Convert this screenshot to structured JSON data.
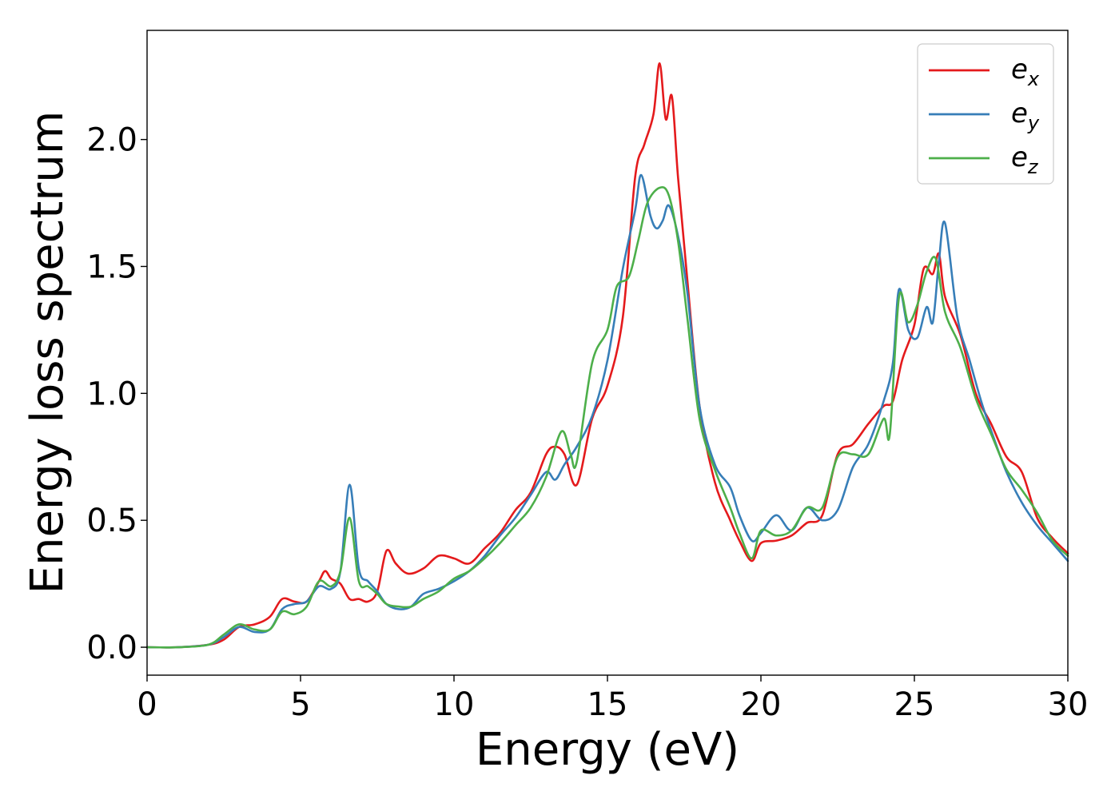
{
  "chart_data": {
    "type": "line",
    "title": "",
    "xlabel": "Energy (eV)",
    "ylabel": "Energy loss spectrum",
    "xlim": [
      0,
      30
    ],
    "ylim": [
      -0.11,
      2.43
    ],
    "xticks": [
      "0",
      "5",
      "10",
      "15",
      "20",
      "25",
      "30"
    ],
    "yticks": [
      "0.0",
      "0.5",
      "1.0",
      "1.5",
      "2.0"
    ],
    "grid": false,
    "legend_position": "top-right",
    "series": [
      {
        "name": "e_x",
        "label_base": "e",
        "label_sub": "x",
        "color": "#e41a1c",
        "x": [
          0,
          1,
          2,
          2.5,
          3,
          3.5,
          4,
          4.4,
          4.8,
          5.2,
          5.6,
          5.8,
          6,
          6.3,
          6.6,
          6.9,
          7.2,
          7.5,
          7.8,
          8.1,
          8.5,
          9,
          9.5,
          10,
          10.5,
          11,
          11.5,
          12,
          12.5,
          13,
          13.3,
          13.6,
          14,
          14.5,
          15,
          15.5,
          15.9,
          16.2,
          16.5,
          16.7,
          16.9,
          17.1,
          17.3,
          17.6,
          18,
          18.5,
          19,
          19.3,
          19.7,
          20,
          20.5,
          21,
          21.5,
          22,
          22.5,
          23,
          23.5,
          24,
          24.3,
          24.6,
          25,
          25.3,
          25.6,
          25.8,
          26,
          26.5,
          27,
          27.5,
          28,
          28.5,
          29,
          29.5,
          30
        ],
        "y": [
          0,
          0,
          0.01,
          0.03,
          0.08,
          0.09,
          0.12,
          0.19,
          0.18,
          0.18,
          0.26,
          0.3,
          0.27,
          0.25,
          0.19,
          0.19,
          0.18,
          0.22,
          0.38,
          0.33,
          0.29,
          0.31,
          0.36,
          0.35,
          0.33,
          0.39,
          0.45,
          0.54,
          0.61,
          0.76,
          0.79,
          0.76,
          0.64,
          0.9,
          1.03,
          1.3,
          1.85,
          1.98,
          2.1,
          2.3,
          2.08,
          2.17,
          1.85,
          1.45,
          0.95,
          0.65,
          0.5,
          0.42,
          0.34,
          0.41,
          0.42,
          0.44,
          0.49,
          0.52,
          0.76,
          0.8,
          0.88,
          0.95,
          0.97,
          1.13,
          1.27,
          1.49,
          1.47,
          1.55,
          1.38,
          1.23,
          1.0,
          0.88,
          0.75,
          0.69,
          0.51,
          0.43,
          0.37
        ]
      },
      {
        "name": "e_y",
        "label_base": "e",
        "label_sub": "y",
        "color": "#377eb8",
        "x": [
          0,
          1,
          2,
          2.5,
          3,
          3.5,
          4,
          4.4,
          4.8,
          5.2,
          5.6,
          6,
          6.3,
          6.6,
          6.9,
          7.2,
          7.5,
          7.8,
          8.2,
          8.6,
          9,
          9.5,
          10,
          10.5,
          11,
          11.5,
          12,
          12.5,
          13,
          13.3,
          13.6,
          14,
          14.5,
          15,
          15.5,
          15.9,
          16.1,
          16.4,
          16.6,
          16.8,
          17,
          17.3,
          17.6,
          18,
          18.5,
          19,
          19.3,
          19.7,
          20,
          20.5,
          21,
          21.5,
          22,
          22.5,
          23,
          23.5,
          24,
          24.3,
          24.5,
          24.8,
          25.1,
          25.4,
          25.6,
          25.8,
          26,
          26.4,
          26.8,
          27.2,
          27.6,
          28,
          28.5,
          29,
          29.5,
          30
        ],
        "y": [
          0,
          0,
          0.01,
          0.04,
          0.08,
          0.06,
          0.07,
          0.15,
          0.17,
          0.18,
          0.24,
          0.23,
          0.3,
          0.64,
          0.31,
          0.26,
          0.22,
          0.17,
          0.15,
          0.16,
          0.21,
          0.23,
          0.26,
          0.3,
          0.36,
          0.44,
          0.51,
          0.6,
          0.69,
          0.66,
          0.72,
          0.79,
          0.91,
          1.13,
          1.49,
          1.72,
          1.86,
          1.7,
          1.65,
          1.68,
          1.74,
          1.62,
          1.4,
          0.95,
          0.72,
          0.63,
          0.52,
          0.42,
          0.45,
          0.52,
          0.46,
          0.55,
          0.5,
          0.54,
          0.71,
          0.8,
          0.97,
          1.12,
          1.41,
          1.25,
          1.22,
          1.34,
          1.28,
          1.52,
          1.67,
          1.3,
          1.13,
          0.96,
          0.82,
          0.69,
          0.57,
          0.48,
          0.41,
          0.34
        ]
      },
      {
        "name": "e_z",
        "label_base": "e",
        "label_sub": "z",
        "color": "#4daf4a",
        "x": [
          0,
          1,
          2,
          2.5,
          3,
          3.5,
          4,
          4.4,
          4.8,
          5.2,
          5.6,
          6,
          6.3,
          6.6,
          6.9,
          7.2,
          7.5,
          7.8,
          8.2,
          8.6,
          9,
          9.5,
          10,
          10.5,
          11,
          11.5,
          12,
          12.5,
          13,
          13.5,
          13.8,
          14,
          14.5,
          15,
          15.3,
          15.7,
          16,
          16.3,
          16.7,
          17,
          17.3,
          17.6,
          18,
          18.5,
          19,
          19.3,
          19.7,
          20,
          20.5,
          21,
          21.5,
          22,
          22.5,
          23,
          23.5,
          24,
          24.2,
          24.5,
          24.8,
          25.1,
          25.4,
          25.7,
          26,
          26.5,
          27,
          27.5,
          28,
          28.5,
          29,
          29.5,
          30
        ],
        "y": [
          0,
          0,
          0.01,
          0.05,
          0.09,
          0.07,
          0.07,
          0.14,
          0.13,
          0.16,
          0.26,
          0.24,
          0.3,
          0.51,
          0.26,
          0.24,
          0.21,
          0.17,
          0.16,
          0.16,
          0.19,
          0.22,
          0.27,
          0.3,
          0.35,
          0.41,
          0.48,
          0.55,
          0.67,
          0.85,
          0.76,
          0.73,
          1.12,
          1.25,
          1.42,
          1.46,
          1.6,
          1.75,
          1.81,
          1.78,
          1.6,
          1.3,
          0.9,
          0.7,
          0.55,
          0.45,
          0.35,
          0.46,
          0.44,
          0.46,
          0.55,
          0.55,
          0.75,
          0.76,
          0.76,
          0.9,
          0.84,
          1.38,
          1.28,
          1.35,
          1.48,
          1.53,
          1.32,
          1.18,
          0.98,
          0.84,
          0.7,
          0.62,
          0.53,
          0.42,
          0.36
        ]
      }
    ]
  }
}
